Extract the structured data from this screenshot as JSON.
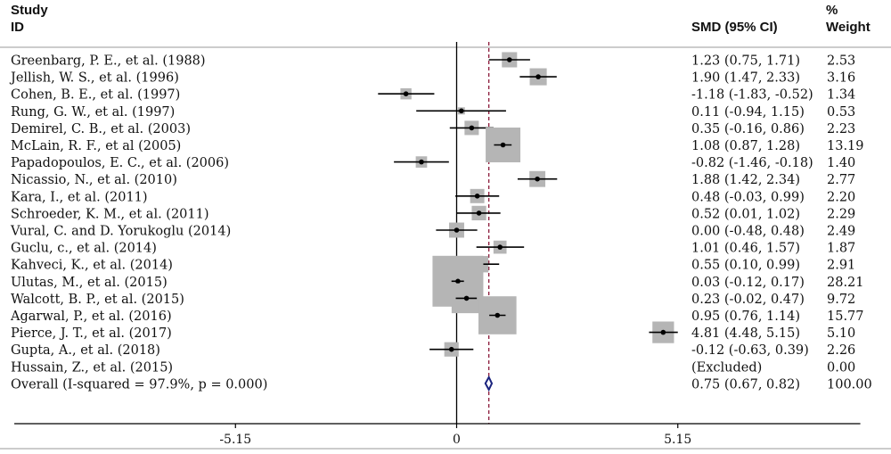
{
  "header": {
    "study_line1": "Study",
    "study_line2": "ID",
    "smd": "SMD (95% CI)",
    "weight_line1": "%",
    "weight_line2": "Weight"
  },
  "chart_data": {
    "type": "forest",
    "xlim": [
      -10.3,
      9.4
    ],
    "xticks": [
      -5.15,
      0,
      5.15
    ],
    "xtick_labels": [
      "-5.15",
      "0",
      "5.15"
    ],
    "null_line": 0,
    "overall_line": 0.75,
    "studies": [
      {
        "id": "Greenbarg, P. E., et al. (1988)",
        "smd": 1.23,
        "lo": 0.75,
        "hi": 1.71,
        "ci_text": "1.23 (0.75, 1.71)",
        "weight": 2.53,
        "weight_text": "2.53"
      },
      {
        "id": "Jellish, W. S., et al. (1996)",
        "smd": 1.9,
        "lo": 1.47,
        "hi": 2.33,
        "ci_text": "1.90 (1.47, 2.33)",
        "weight": 3.16,
        "weight_text": "3.16"
      },
      {
        "id": "Cohen, B. E., et al. (1997)",
        "smd": -1.18,
        "lo": -1.83,
        "hi": -0.52,
        "ci_text": "-1.18 (-1.83, -0.52)",
        "weight": 1.34,
        "weight_text": "1.34"
      },
      {
        "id": "Rung, G. W., et al. (1997)",
        "smd": 0.11,
        "lo": -0.94,
        "hi": 1.15,
        "ci_text": "0.11 (-0.94, 1.15)",
        "weight": 0.53,
        "weight_text": "0.53"
      },
      {
        "id": "Demirel, C. B., et al. (2003)",
        "smd": 0.35,
        "lo": -0.16,
        "hi": 0.86,
        "ci_text": "0.35 (-0.16, 0.86)",
        "weight": 2.23,
        "weight_text": "2.23"
      },
      {
        "id": "McLain, R. F., et al (2005)",
        "smd": 1.08,
        "lo": 0.87,
        "hi": 1.28,
        "ci_text": "1.08 (0.87, 1.28)",
        "weight": 13.19,
        "weight_text": "13.19"
      },
      {
        "id": "Papadopoulos, E. C., et al. (2006)",
        "smd": -0.82,
        "lo": -1.46,
        "hi": -0.18,
        "ci_text": "-0.82 (-1.46, -0.18)",
        "weight": 1.4,
        "weight_text": "1.40"
      },
      {
        "id": "Nicassio, N., et al. (2010)",
        "smd": 1.88,
        "lo": 1.42,
        "hi": 2.34,
        "ci_text": "1.88 (1.42, 2.34)",
        "weight": 2.77,
        "weight_text": "2.77"
      },
      {
        "id": "Kara, I., et al. (2011)",
        "smd": 0.48,
        "lo": -0.03,
        "hi": 0.99,
        "ci_text": "0.48 (-0.03, 0.99)",
        "weight": 2.2,
        "weight_text": "2.20"
      },
      {
        "id": "Schroeder, K. M., et al. (2011)",
        "smd": 0.52,
        "lo": 0.01,
        "hi": 1.02,
        "ci_text": "0.52 (0.01, 1.02)",
        "weight": 2.29,
        "weight_text": "2.29"
      },
      {
        "id": "Vural, C. and D. Yorukoglu (2014)",
        "smd": 0.0,
        "lo": -0.48,
        "hi": 0.48,
        "ci_text": "0.00 (-0.48, 0.48)",
        "weight": 2.49,
        "weight_text": "2.49"
      },
      {
        "id": "Guclu, c., et al. (2014)",
        "smd": 1.01,
        "lo": 0.46,
        "hi": 1.57,
        "ci_text": "1.01 (0.46, 1.57)",
        "weight": 1.87,
        "weight_text": "1.87"
      },
      {
        "id": "Kahveci, K., et al. (2014)",
        "smd": 0.55,
        "lo": 0.1,
        "hi": 0.99,
        "ci_text": "0.55 (0.10, 0.99)",
        "weight": 2.91,
        "weight_text": "2.91"
      },
      {
        "id": "Ulutas, M., et al. (2015)",
        "smd": 0.03,
        "lo": -0.12,
        "hi": 0.17,
        "ci_text": "0.03 (-0.12, 0.17)",
        "weight": 28.21,
        "weight_text": "28.21"
      },
      {
        "id": "Walcott, B. P., et al. (2015)",
        "smd": 0.23,
        "lo": -0.02,
        "hi": 0.47,
        "ci_text": "0.23 (-0.02, 0.47)",
        "weight": 9.72,
        "weight_text": "9.72"
      },
      {
        "id": "Agarwal, P., et al. (2016)",
        "smd": 0.95,
        "lo": 0.76,
        "hi": 1.14,
        "ci_text": "0.95 (0.76, 1.14)",
        "weight": 15.77,
        "weight_text": "15.77"
      },
      {
        "id": "Pierce, J. T., et al. (2017)",
        "smd": 4.81,
        "lo": 4.48,
        "hi": 5.15,
        "ci_text": "4.81 (4.48, 5.15)",
        "weight": 5.1,
        "weight_text": "5.10"
      },
      {
        "id": "Gupta, A., et al. (2018)",
        "smd": -0.12,
        "lo": -0.63,
        "hi": 0.39,
        "ci_text": "-0.12 (-0.63, 0.39)",
        "weight": 2.26,
        "weight_text": "2.26"
      },
      {
        "id": "Hussain, Z., et al. (2015)",
        "smd": null,
        "lo": null,
        "hi": null,
        "ci_text": "(Excluded)",
        "weight": 0.0,
        "weight_text": "0.00"
      }
    ],
    "overall": {
      "label": "Overall  (I-squared = 97.9%, p = 0.000)",
      "smd": 0.75,
      "lo": 0.67,
      "hi": 0.82,
      "ci_text": "0.75 (0.67, 0.82)",
      "weight_text": "100.00"
    },
    "colors": {
      "box": "#b5b5b5",
      "ci": "#000000",
      "diamond": "#1a237e",
      "overall_line": "#8b1a3a",
      "axis": "#000000",
      "rule": "#999999"
    }
  }
}
